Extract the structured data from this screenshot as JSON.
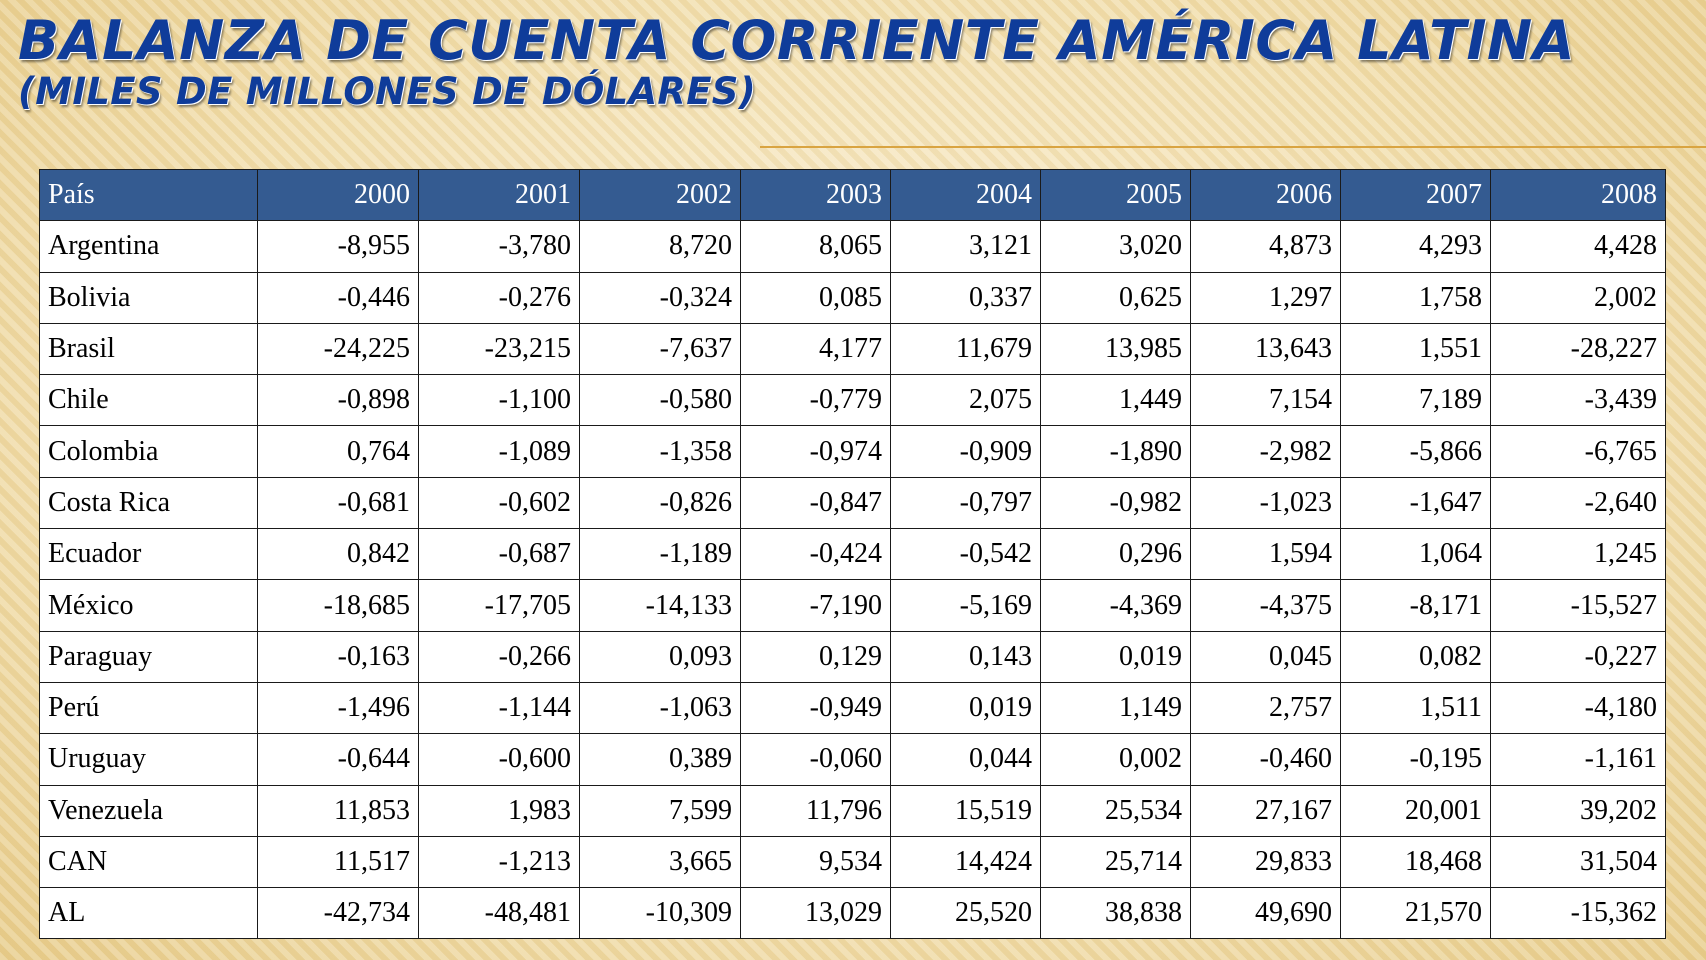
{
  "title": {
    "line1": "BALANZA DE CUENTA CORRIENTE AMÉRICA LATINA",
    "line2": "(MILES DE MILLONES  DE DÓLARES)"
  },
  "colors": {
    "title": "#0f3c9a",
    "header_bg": "#345b91",
    "header_text": "#ffffff",
    "background": "#f3e5c2",
    "accent_rule": "#d9a441"
  },
  "table": {
    "headers": [
      "País",
      "2000",
      "2001",
      "2002",
      "2003",
      "2004",
      "2005",
      "2006",
      "2007",
      "2008"
    ],
    "rows": [
      [
        "Argentina",
        "-8,955",
        "-3,780",
        "8,720",
        "8,065",
        "3,121",
        "3,020",
        "4,873",
        "4,293",
        "4,428"
      ],
      [
        "Bolivia",
        "-0,446",
        "-0,276",
        "-0,324",
        "0,085",
        "0,337",
        "0,625",
        "1,297",
        "1,758",
        "2,002"
      ],
      [
        "Brasil",
        "-24,225",
        "-23,215",
        "-7,637",
        "4,177",
        "11,679",
        "13,985",
        "13,643",
        "1,551",
        "-28,227"
      ],
      [
        "Chile",
        "-0,898",
        "-1,100",
        "-0,580",
        "-0,779",
        "2,075",
        "1,449",
        "7,154",
        "7,189",
        "-3,439"
      ],
      [
        "Colombia",
        "0,764",
        "-1,089",
        "-1,358",
        "-0,974",
        "-0,909",
        "-1,890",
        "-2,982",
        "-5,866",
        "-6,765"
      ],
      [
        "Costa Rica",
        "-0,681",
        "-0,602",
        "-0,826",
        "-0,847",
        "-0,797",
        "-0,982",
        "-1,023",
        "-1,647",
        "-2,640"
      ],
      [
        "Ecuador",
        "0,842",
        "-0,687",
        "-1,189",
        "-0,424",
        "-0,542",
        "0,296",
        "1,594",
        "1,064",
        "1,245"
      ],
      [
        "México",
        "-18,685",
        "-17,705",
        "-14,133",
        "-7,190",
        "-5,169",
        "-4,369",
        "-4,375",
        "-8,171",
        "-15,527"
      ],
      [
        "Paraguay",
        "-0,163",
        "-0,266",
        "0,093",
        "0,129",
        "0,143",
        "0,019",
        "0,045",
        "0,082",
        "-0,227"
      ],
      [
        "Perú",
        "-1,496",
        "-1,144",
        "-1,063",
        "-0,949",
        "0,019",
        "1,149",
        "2,757",
        "1,511",
        "-4,180"
      ],
      [
        "Uruguay",
        "-0,644",
        "-0,600",
        "0,389",
        "-0,060",
        "0,044",
        "0,002",
        "-0,460",
        "-0,195",
        "-1,161"
      ],
      [
        "Venezuela",
        "11,853",
        "1,983",
        "7,599",
        "11,796",
        "15,519",
        "25,534",
        "27,167",
        "20,001",
        "39,202"
      ],
      [
        "CAN",
        "11,517",
        "-1,213",
        "3,665",
        "9,534",
        "14,424",
        "25,714",
        "29,833",
        "18,468",
        "31,504"
      ],
      [
        "AL",
        "-42,734",
        "-48,481",
        "-10,309",
        "13,029",
        "25,520",
        "38,838",
        "49,690",
        "21,570",
        "-15,362"
      ]
    ]
  }
}
